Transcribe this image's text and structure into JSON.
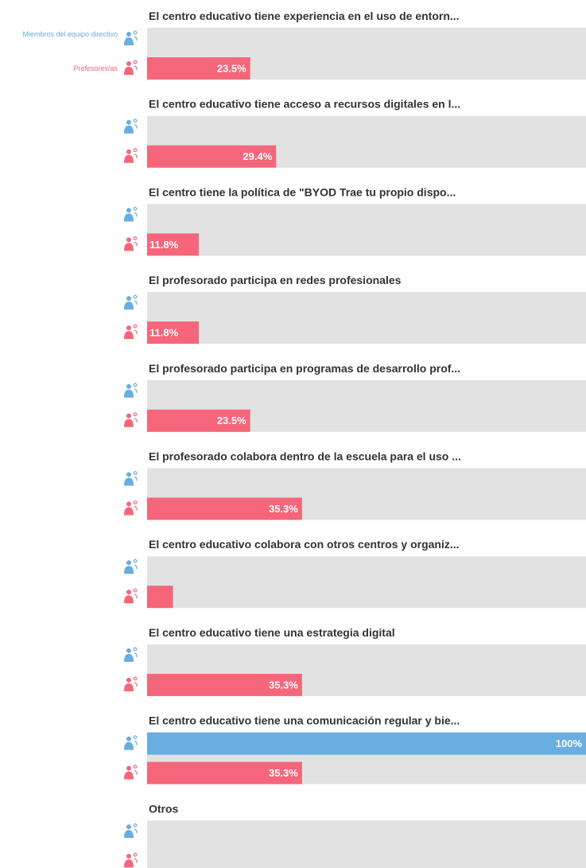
{
  "chart_data": {
    "type": "bar",
    "orientation": "horizontal",
    "categories": [
      "El centro educativo tiene experiencia en el uso de entorn...",
      "El centro educativo tiene acceso a recursos digitales en l...",
      "El centro tiene la política de \"BYOD Trae tu propio dispo...",
      "El profesorado participa en redes profesionales",
      "El profesorado participa en programas de desarrollo prof...",
      "El profesorado colabora dentro de la escuela para el uso ...",
      "El centro educativo colabora con otros centros y organiz...",
      "El centro educativo tiene una estrategia digital",
      "El centro educativo tiene una comunicación regular y bie...",
      "Otros"
    ],
    "series": [
      {
        "name": "Miembros del equipo directivo",
        "color": "#68aee0",
        "values": [
          0,
          0,
          0,
          0,
          0,
          0,
          0,
          0,
          100,
          0
        ],
        "value_labels": [
          null,
          null,
          null,
          null,
          null,
          null,
          null,
          null,
          "100%",
          null
        ]
      },
      {
        "name": "Profesores/as",
        "color": "#f5667a",
        "values": [
          23.5,
          29.4,
          11.8,
          11.8,
          23.5,
          35.3,
          5.9,
          35.3,
          35.3,
          0
        ],
        "value_labels": [
          "23.5%",
          "29.4%",
          "11.8%",
          "11.8%",
          "23.5%",
          "35.3%",
          null,
          "35.3%",
          "35.3%",
          null
        ]
      }
    ],
    "xlim": [
      0,
      100
    ],
    "track_color": "#e2e2e2"
  }
}
